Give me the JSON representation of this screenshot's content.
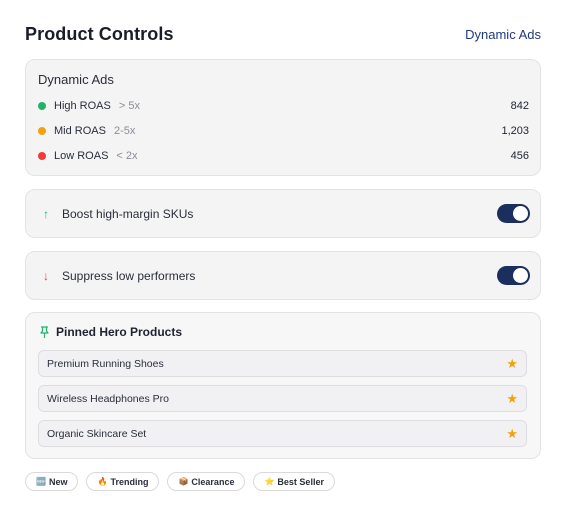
{
  "header": {
    "title": "Product Controls",
    "link": "Dynamic Ads"
  },
  "roas": {
    "title": "Dynamic Ads",
    "rows": [
      {
        "name": "High ROAS",
        "range": "> 5x",
        "count": "842",
        "color": "#22b26a"
      },
      {
        "name": "Mid ROAS",
        "range": "2-5x",
        "count": "1,203",
        "color": "#f2a20f"
      },
      {
        "name": "Low ROAS",
        "range": "< 2x",
        "count": "456",
        "color": "#ef3b3b"
      }
    ]
  },
  "toggles": [
    {
      "arrow": "↑",
      "arrow_color": "#22b26a",
      "label": "Boost high-margin SKUs",
      "on": true
    },
    {
      "arrow": "↓",
      "arrow_color": "#ef3b3b",
      "label": "Suppress low performers",
      "on": true
    }
  ],
  "pinned": {
    "title": "Pinned Hero Products",
    "icon": "pin-icon",
    "products": [
      {
        "name": "Premium Running Shoes",
        "icon": "star-icon"
      },
      {
        "name": "Wireless Headphones Pro",
        "icon": "star-icon"
      },
      {
        "name": "Organic Skincare Set",
        "icon": "star-icon"
      }
    ]
  },
  "tags": [
    {
      "emoji": "🆕",
      "label": "New"
    },
    {
      "emoji": "🔥",
      "label": "Trending"
    },
    {
      "emoji": "📦",
      "label": "Clearance"
    },
    {
      "emoji": "⭐",
      "label": "Best Seller"
    }
  ]
}
